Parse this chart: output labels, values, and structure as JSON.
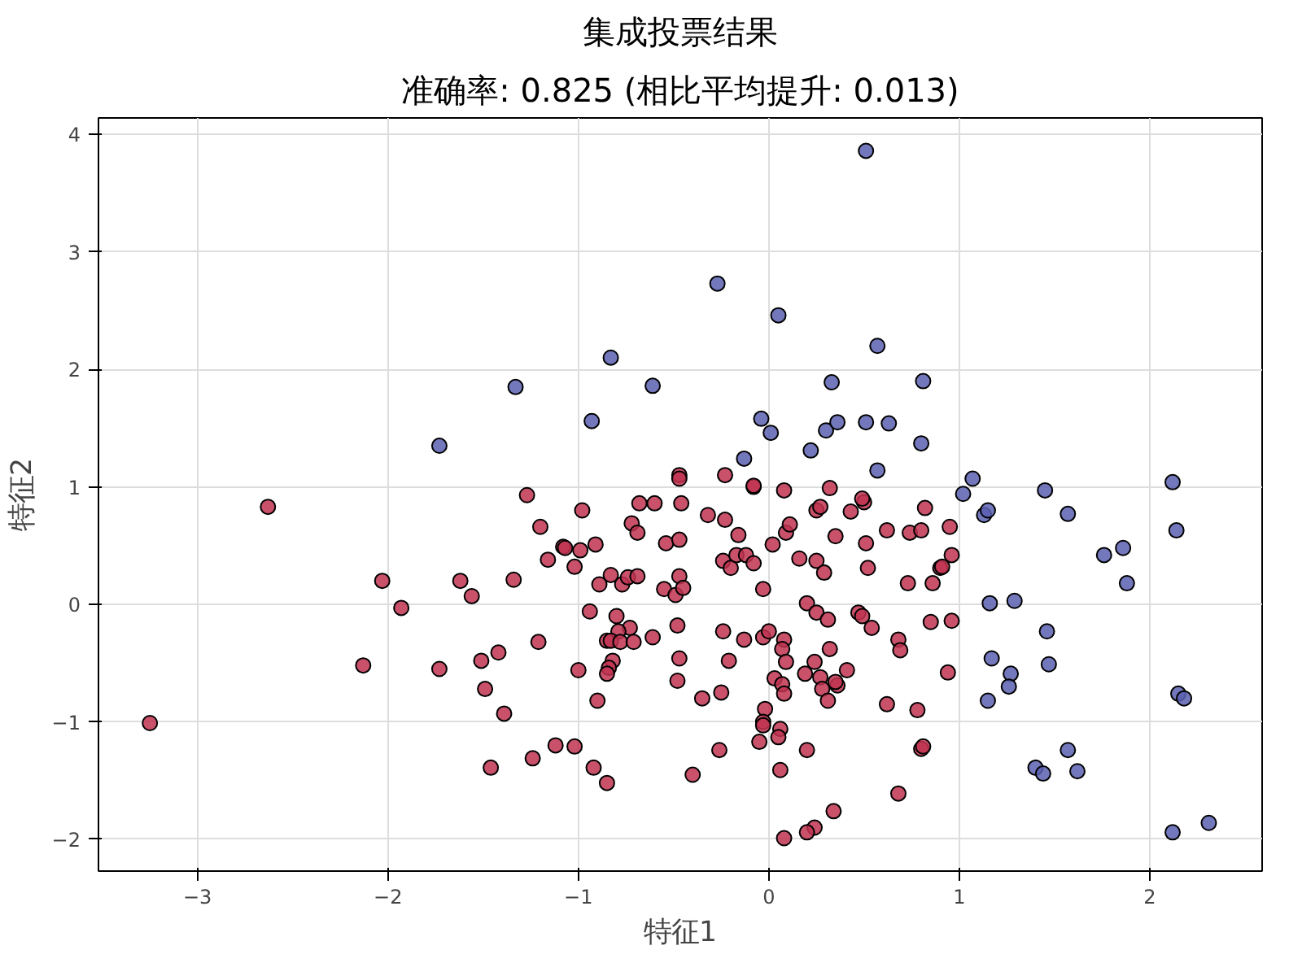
{
  "chart_data": {
    "type": "scatter",
    "title": "集成投票结果",
    "subtitle": "准确率: 0.825 (相比平均提升: 0.013)",
    "xlabel": "特征1",
    "ylabel": "特征2",
    "xlim": [
      -3.52,
      2.59
    ],
    "ylim": [
      -2.27,
      4.14
    ],
    "xticks": [
      -3,
      -2,
      -1,
      0,
      1,
      2
    ],
    "yticks": [
      -2,
      -1,
      0,
      1,
      2,
      3,
      4
    ],
    "grid": true,
    "marker": "circle",
    "series": [
      {
        "color": "#5b60b2",
        "x": [
          0.51,
          -0.27,
          0.05,
          -0.83,
          -1.33,
          -0.61,
          0.33,
          0.57,
          -0.93,
          -0.04,
          0.01,
          0.3,
          0.36,
          0.51,
          -0.13,
          0.22,
          0.57,
          0.81,
          0.63,
          0.8,
          1.07,
          1.02,
          1.45,
          2.12,
          1.13,
          1.15,
          1.57,
          2.14,
          1.76,
          1.86,
          1.88,
          1.16,
          1.29,
          1.46,
          1.17,
          1.27,
          1.26,
          1.47,
          1.15,
          2.15,
          2.18,
          1.57,
          1.4,
          1.44,
          1.62,
          2.12,
          2.31,
          -1.73
        ],
        "values": [
          3.86,
          2.73,
          2.46,
          2.1,
          1.85,
          1.86,
          1.89,
          2.2,
          1.56,
          1.58,
          1.46,
          1.48,
          1.55,
          1.55,
          1.24,
          1.31,
          1.14,
          1.9,
          1.54,
          1.37,
          1.07,
          0.94,
          0.97,
          1.04,
          0.76,
          0.8,
          0.77,
          0.63,
          0.42,
          0.48,
          0.18,
          0.01,
          0.03,
          -0.23,
          -0.46,
          -0.59,
          -0.7,
          -0.51,
          -0.82,
          -0.76,
          -0.8,
          -1.24,
          -1.39,
          -1.44,
          -1.42,
          -1.94,
          -1.86,
          1.35
        ]
      },
      {
        "color": "#bf3350",
        "x": [
          -1.27,
          -0.98,
          -1.2,
          -0.68,
          -0.6,
          -0.46,
          -0.32,
          -0.23,
          -0.16,
          -0.08,
          0.08,
          0.32,
          0.25,
          0.27,
          0.43,
          0.5,
          -0.72,
          -0.69,
          -0.54,
          -0.47,
          -1.08,
          -1.07,
          -0.99,
          -0.91,
          -1.16,
          -1.02,
          -1.34,
          -0.89,
          -0.83,
          -0.77,
          -0.74,
          -0.69,
          -0.55,
          -0.49,
          -0.47,
          -0.45,
          -0.24,
          -0.2,
          -0.17,
          -0.12,
          -0.08,
          0.02,
          0.09,
          0.11,
          0.16,
          0.25,
          0.29,
          0.35,
          0.51,
          0.52,
          -0.03,
          -0.94,
          -0.8,
          -0.73,
          -0.79,
          -0.85,
          -0.83,
          -0.78,
          -0.71,
          -0.61,
          -0.48,
          -1.42,
          -1.51,
          -1.21,
          -1.0,
          -0.82,
          -0.84,
          -0.85,
          -0.47,
          -0.48,
          -0.24,
          -0.13,
          -0.03,
          0.0,
          0.08,
          0.07,
          0.09,
          -0.21,
          -0.35,
          -0.25,
          0.03,
          0.07,
          0.08,
          0.19,
          0.24,
          0.27,
          0.28,
          0.36,
          0.35,
          0.41,
          0.32,
          0.31,
          0.47,
          0.49,
          0.54,
          0.2,
          0.25,
          0.31,
          -0.9,
          -1.49,
          -1.39,
          -0.02,
          -0.03,
          -0.03,
          0.06,
          0.05,
          -0.05,
          0.2,
          -0.26,
          -1.12,
          -1.02,
          -1.24,
          -1.46,
          -0.92,
          -0.85,
          -0.4,
          0.06,
          0.34,
          0.24,
          0.2,
          0.08,
          -0.47,
          -0.47,
          -0.23,
          -0.08,
          0.49,
          -2.63,
          -2.03,
          -1.93,
          -1.62,
          -1.56,
          -2.13,
          -1.73,
          -3.25,
          0.82,
          0.62,
          0.74,
          0.8,
          0.95,
          0.96,
          0.9,
          0.91,
          0.73,
          0.86,
          0.85,
          0.96,
          0.68,
          0.69,
          0.94,
          0.62,
          0.78,
          0.8,
          0.68,
          0.81
        ],
        "values": [
          0.93,
          0.8,
          0.66,
          0.86,
          0.86,
          0.86,
          0.76,
          0.72,
          0.59,
          1.0,
          0.97,
          0.99,
          0.8,
          0.83,
          0.79,
          0.87,
          0.69,
          0.61,
          0.52,
          0.55,
          0.49,
          0.48,
          0.46,
          0.51,
          0.38,
          0.32,
          0.21,
          0.17,
          0.25,
          0.17,
          0.23,
          0.24,
          0.13,
          0.08,
          0.24,
          0.14,
          0.37,
          0.31,
          0.42,
          0.42,
          0.35,
          0.51,
          0.61,
          0.68,
          0.39,
          0.37,
          0.27,
          0.58,
          0.52,
          0.31,
          0.13,
          -0.06,
          -0.1,
          -0.2,
          -0.23,
          -0.31,
          -0.31,
          -0.32,
          -0.32,
          -0.28,
          -0.18,
          -0.41,
          -0.48,
          -0.32,
          -0.56,
          -0.48,
          -0.54,
          -0.59,
          -0.46,
          -0.65,
          -0.23,
          -0.3,
          -0.28,
          -0.23,
          -0.3,
          -0.38,
          -0.49,
          -0.48,
          -0.8,
          -0.75,
          -0.63,
          -0.68,
          -0.76,
          -0.59,
          -0.49,
          -0.62,
          -0.72,
          -0.69,
          -0.66,
          -0.56,
          -0.38,
          -0.82,
          -0.07,
          -0.1,
          -0.2,
          0.01,
          -0.07,
          -0.13,
          -0.82,
          -0.72,
          -0.93,
          -0.89,
          -1.0,
          -1.03,
          -1.06,
          -1.13,
          -1.17,
          -1.24,
          -1.24,
          -1.2,
          -1.21,
          -1.31,
          -1.39,
          -1.39,
          -1.52,
          -1.45,
          -1.41,
          -1.76,
          -1.9,
          -1.94,
          -1.99,
          1.1,
          1.07,
          1.1,
          1.01,
          0.9,
          0.83,
          0.2,
          -0.03,
          0.2,
          0.07,
          -0.52,
          -0.55,
          -1.01,
          0.82,
          0.63,
          0.61,
          0.63,
          0.66,
          0.42,
          0.31,
          0.32,
          0.18,
          0.18,
          -0.15,
          -0.14,
          -0.3,
          -0.39,
          -0.58,
          -0.85,
          -0.9,
          -1.23,
          -1.61,
          -1.21
        ]
      }
    ]
  }
}
